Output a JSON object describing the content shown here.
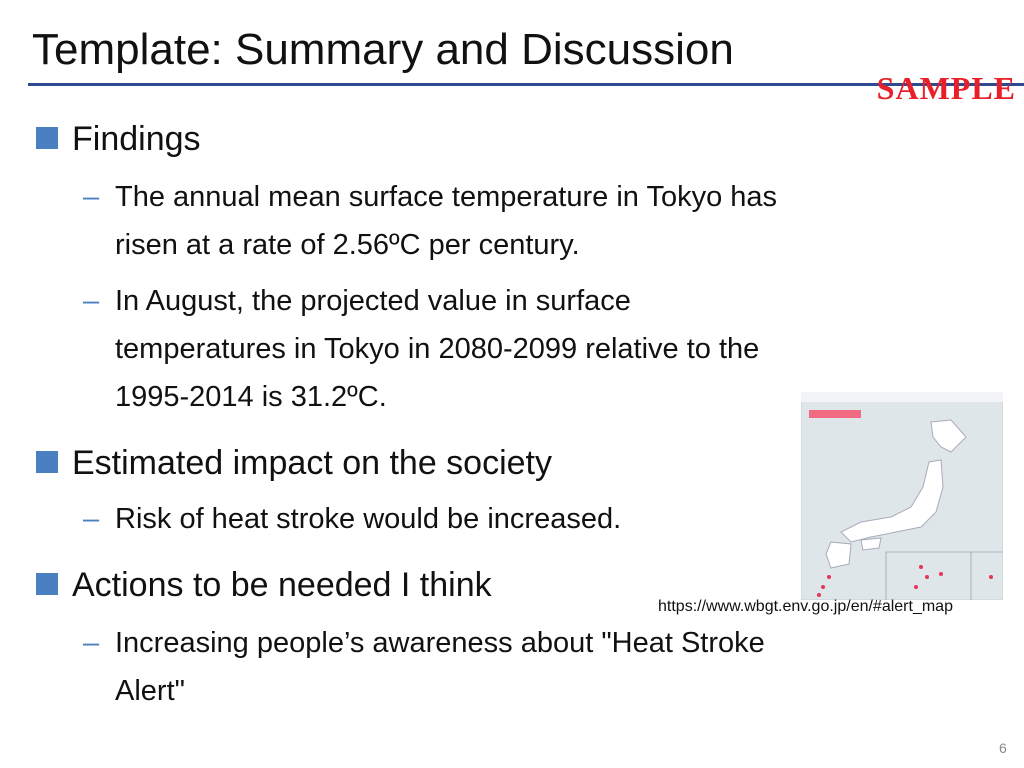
{
  "header": {
    "title": "Template: Summary and Discussion",
    "stamp": "SAMPLE"
  },
  "bullets": [
    {
      "text": "Findings",
      "items": [
        {
          "lines": [
            "The annual mean surface temperature in Tokyo has",
            "risen at a rate of 2.56ºC per century."
          ]
        },
        {
          "lines": [
            "In August, the projected value in surface",
            "temperatures in Tokyo in 2080-2099 relative to the",
            "1995-2014 is 31.2ºC."
          ]
        }
      ]
    },
    {
      "text": "Estimated impact on the society",
      "items": [
        {
          "lines": [
            "Risk of heat stroke would be increased."
          ]
        }
      ]
    },
    {
      "text": "Actions to be needed I think",
      "items": [
        {
          "lines": [
            "Increasing people’s awareness about \"Heat Stroke",
            "Alert\""
          ]
        }
      ]
    }
  ],
  "figure": {
    "caption": "https://www.wbgt.env.go.jp/en/#alert_map"
  },
  "footer": {
    "page": "6"
  }
}
